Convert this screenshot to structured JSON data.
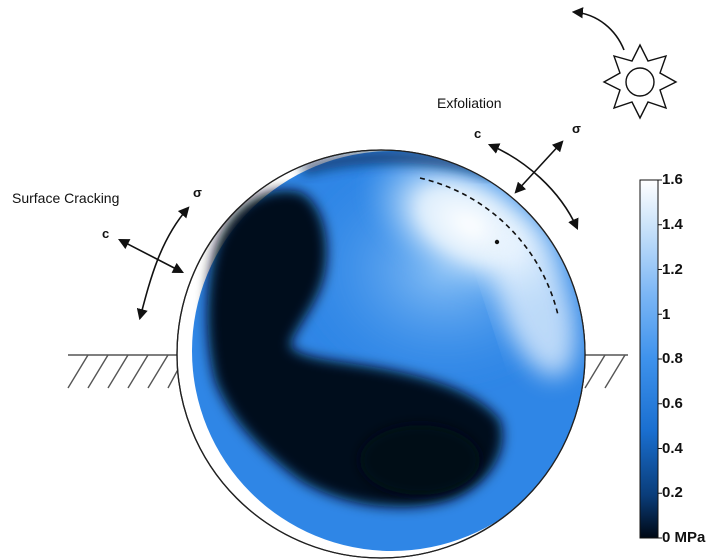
{
  "labels": {
    "surface_cracking": "Surface Cracking",
    "exfoliation": "Exfoliation",
    "c_symbol": "c",
    "sigma_symbol": "σ"
  },
  "colorbar": {
    "ticks": [
      "1.6",
      "1.4",
      "1.2",
      "1",
      "0.8",
      "0.6",
      "0.4",
      "0.2",
      "0 MPa"
    ],
    "min": 0,
    "max": 1.6,
    "colors": [
      "#000814",
      "#0a3d7a",
      "#1a6fd0",
      "#3e92ec",
      "#7bb6f5",
      "#c2def9",
      "#ffffff"
    ]
  },
  "icons": [
    "sun-icon",
    "rotation-arrow-icon",
    "ground-hatch-icon",
    "stress-cross-icon"
  ]
}
